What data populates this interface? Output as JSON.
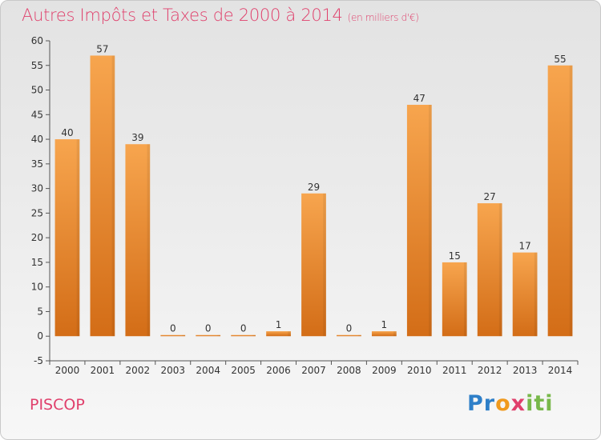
{
  "chart_data": {
    "type": "bar",
    "title": "Autres Impôts et Taxes de 2000 à 2014",
    "unit_label": "(en milliers d'€)",
    "categories": [
      "2000",
      "2001",
      "2002",
      "2003",
      "2004",
      "2005",
      "2006",
      "2007",
      "2008",
      "2009",
      "2010",
      "2011",
      "2012",
      "2013",
      "2014"
    ],
    "values": [
      40,
      57,
      39,
      0,
      0,
      0,
      1,
      29,
      0,
      1,
      47,
      15,
      27,
      17,
      55
    ],
    "value_labels": [
      "40",
      "57",
      "39",
      "0",
      "0",
      "0",
      "1",
      "29",
      "0",
      "1",
      "47",
      "15",
      "27",
      "17",
      "55"
    ],
    "ylim": [
      -5,
      60
    ],
    "yticks": [
      -5,
      0,
      5,
      10,
      15,
      20,
      25,
      30,
      35,
      40,
      45,
      50,
      55,
      60
    ],
    "grid": false,
    "bar_color": "#f0902e",
    "bar_color_dark": "#d9701a"
  },
  "commune": "PISCOP",
  "brand": {
    "p1": "Pr",
    "p2": "o",
    "p3": "x",
    "p4": "iti"
  }
}
